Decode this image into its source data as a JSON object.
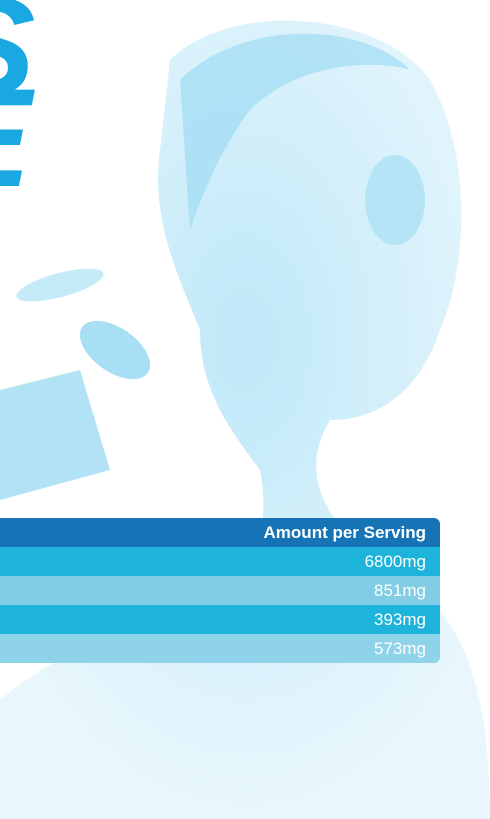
{
  "headline": [
    "S",
    "E"
  ],
  "table": {
    "header": "Amount per Serving",
    "rows": [
      "6800mg",
      "851mg",
      "393mg",
      "573mg"
    ]
  }
}
